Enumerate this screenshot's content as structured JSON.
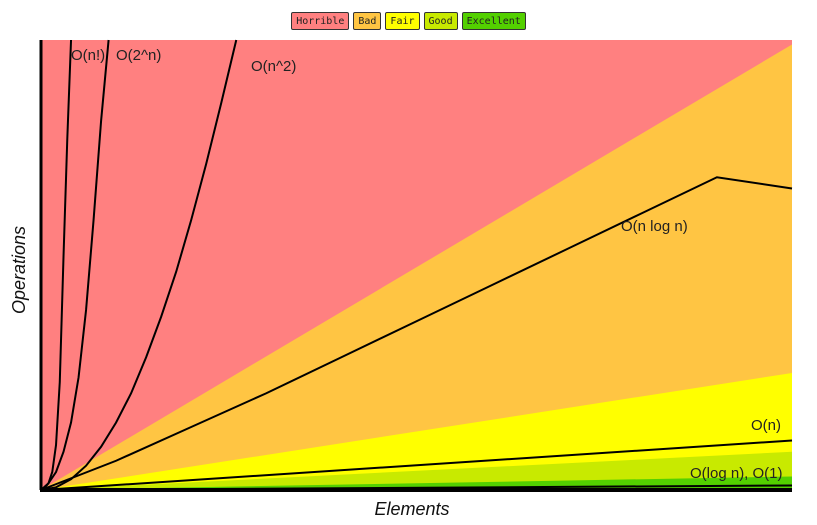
{
  "legend": [
    {
      "label": "Horrible",
      "color": "#ff8080"
    },
    {
      "label": "Bad",
      "color": "#ffc543"
    },
    {
      "label": "Fair",
      "color": "#ffff00"
    },
    {
      "label": "Good",
      "color": "#c8ea00"
    },
    {
      "label": "Excellent",
      "color": "#53d000"
    }
  ],
  "chart_data": {
    "type": "line",
    "title": "",
    "xlabel": "Elements",
    "ylabel": "Operations",
    "xlim": [
      0,
      100
    ],
    "ylim": [
      0,
      100
    ],
    "grid": false,
    "legend_position": "top-center",
    "regions": [
      {
        "name": "Horrible",
        "color": "#ff8080",
        "upper_slope": null
      },
      {
        "name": "Bad",
        "color": "#ffc543",
        "upper_slope": 0.99
      },
      {
        "name": "Fair",
        "color": "#ffff00",
        "upper_slope": 0.26
      },
      {
        "name": "Good",
        "color": "#c8ea00",
        "upper_slope": 0.085
      },
      {
        "name": "Excellent",
        "color": "#53d000",
        "upper_slope": 0.03
      }
    ],
    "series": [
      {
        "name": "O(n!)",
        "x": [
          0,
          0.5,
          1,
          1.5,
          2,
          2.5,
          3,
          3.5,
          4
        ],
        "y": [
          0,
          0.5,
          1.5,
          4,
          10,
          24,
          52,
          78,
          100
        ]
      },
      {
        "name": "O(2^n)",
        "x": [
          0,
          1,
          2,
          3,
          4,
          5,
          6,
          7,
          8,
          9
        ],
        "y": [
          0,
          1.5,
          4,
          8.5,
          15,
          25,
          40,
          60,
          82,
          100
        ]
      },
      {
        "name": "O(n^2)",
        "x": [
          0,
          2,
          4,
          6,
          8,
          10,
          12,
          14,
          16,
          18,
          20,
          22,
          24,
          26
        ],
        "y": [
          0,
          0.6,
          2.4,
          5.4,
          9.6,
          15,
          21.5,
          29.5,
          38.5,
          48.5,
          60,
          72.5,
          86,
          100
        ]
      },
      {
        "name": "O(n log n)",
        "x": [
          0,
          10,
          20,
          30,
          40,
          50,
          60,
          70,
          80,
          90,
          100
        ],
        "y": [
          0,
          6.5,
          14,
          21.5,
          29.5,
          37.5,
          45.5,
          53.5,
          61.5,
          69.5,
          67
        ]
      },
      {
        "name": "O(n)",
        "x": [
          0,
          100
        ],
        "y": [
          0,
          11
        ]
      },
      {
        "name": "O(log n), O(1)",
        "x": [
          0,
          100
        ],
        "y": [
          0,
          1
        ]
      }
    ]
  }
}
